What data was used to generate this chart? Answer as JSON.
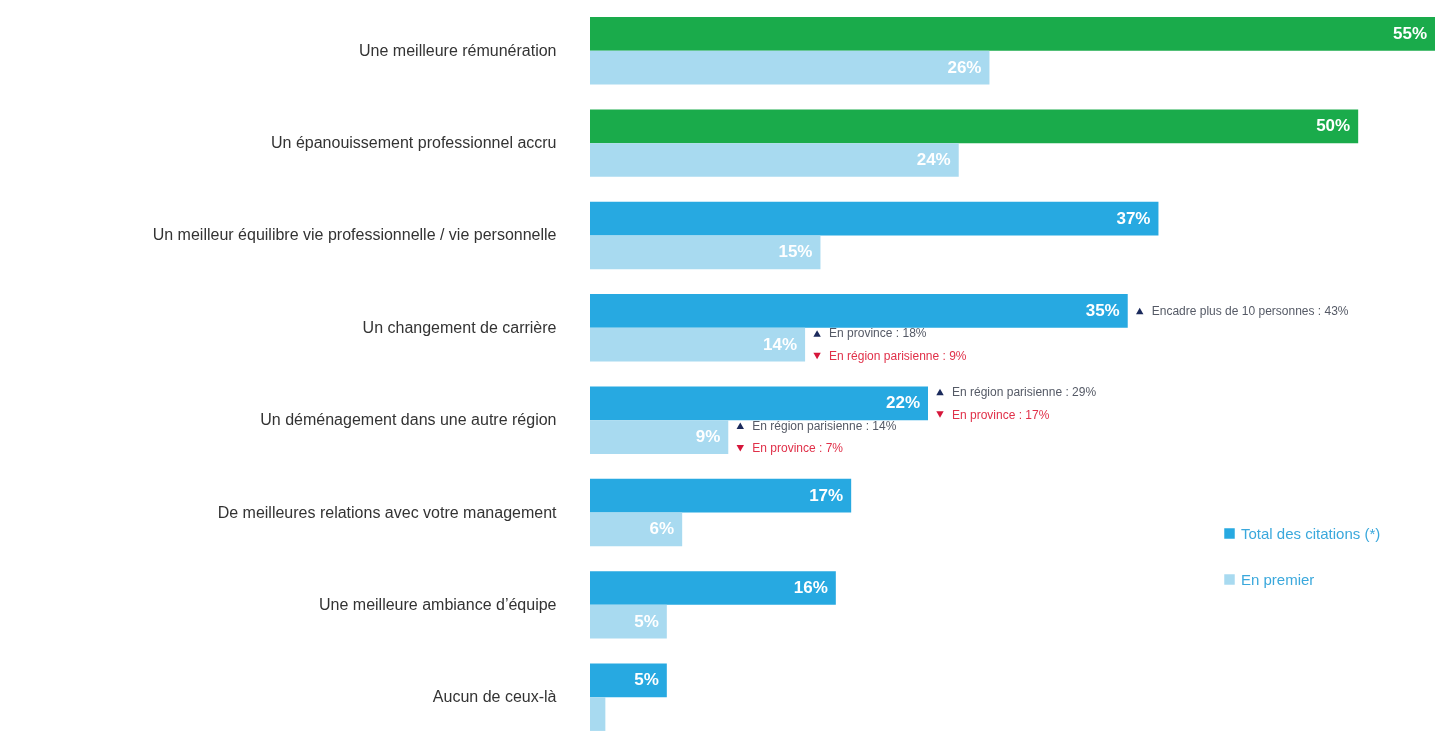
{
  "chart_data": {
    "type": "bar",
    "orientation": "horizontal",
    "categories": [
      "Une meilleure rémunération",
      "Un épanouissement professionnel accru",
      "Un meilleur équilibre vie professionnelle / vie personnelle",
      "Un changement de carrière",
      "Un déménagement dans une autre région",
      "De meilleures relations avec votre management",
      "Une meilleure ambiance d’équipe",
      "Aucun de ceux-là"
    ],
    "series": [
      {
        "name": "Total des citations (*)",
        "color": "#27a9e1",
        "colors": [
          "#1aab4b",
          "#1aab4b",
          "#27a9e1",
          "#27a9e1",
          "#27a9e1",
          "#27a9e1",
          "#27a9e1",
          "#27a9e1"
        ],
        "values": [
          55,
          50,
          37,
          35,
          22,
          17,
          16,
          5
        ],
        "value_labels": [
          "55%",
          "50%",
          "37%",
          "35%",
          "22%",
          "17%",
          "16%",
          "5%"
        ]
      },
      {
        "name": "En premier",
        "color": "#a8daf0",
        "values": [
          26,
          24,
          15,
          14,
          9,
          6,
          5,
          1
        ],
        "value_labels": [
          "26%",
          "24%",
          "15%",
          "14%",
          "9%",
          "6%",
          "5%",
          null
        ]
      }
    ],
    "legend": "right",
    "annotations": [
      {
        "text": "Encadre plus de 10 personnes : 43%",
        "x": 35,
        "y": "Un changement de carrière"
      },
      {
        "text": "En province : 18%",
        "x": 14,
        "y": "Un changement de carrière"
      },
      {
        "text": "En région parisienne : 9%",
        "x": 14,
        "y": "Un changement de carrière"
      },
      {
        "text": "En région parisienne : 29%",
        "x": 22,
        "y": "Un déménagement dans une autre région"
      },
      {
        "text": "En province : 17%",
        "x": 22,
        "y": "Un déménagement dans une autre région"
      },
      {
        "text": "En région parisienne : 14%",
        "x": 9,
        "y": "Un déménagement dans une autre région"
      },
      {
        "text": "En province : 7%",
        "x": 9,
        "y": "Un déménagement dans une autre région"
      }
    ]
  }
}
